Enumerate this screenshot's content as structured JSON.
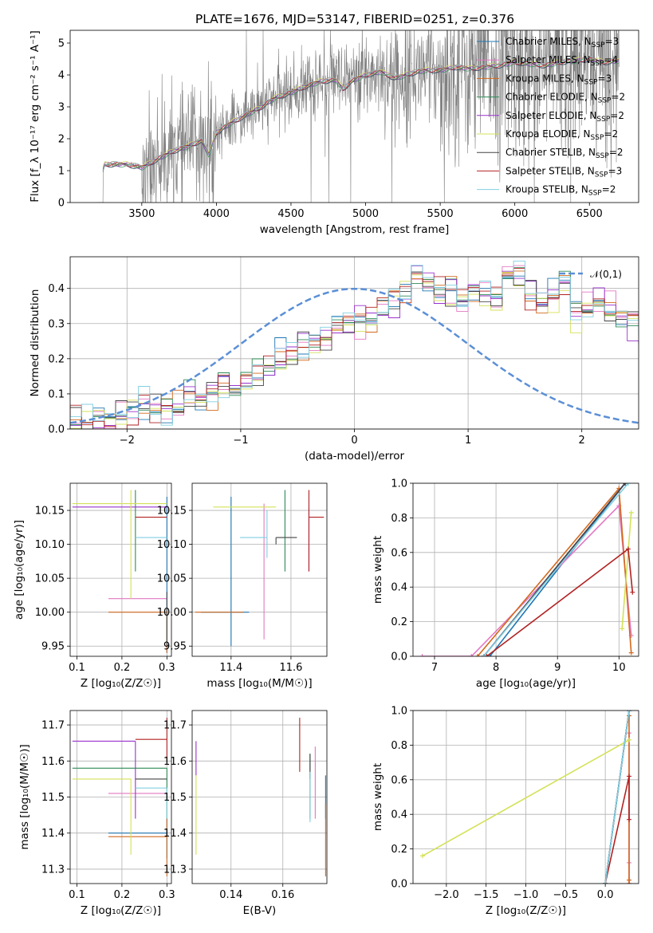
{
  "figure": {
    "title": "PLATE=1676, MJD=53147, FIBERID=0251, z=0.376"
  },
  "models": [
    {
      "name": "Chabrier MILES",
      "n": "3",
      "color": "#1f77b4"
    },
    {
      "name": "Salpeter MILES",
      "n": "4",
      "color": "#e377c2"
    },
    {
      "name": "Kroupa MILES",
      "n": "3",
      "color": "#d2691e"
    },
    {
      "name": "Chabrier ELODIE",
      "n": "2",
      "color": "#2e8b57"
    },
    {
      "name": "Salpeter ELODIE",
      "n": "2",
      "color": "#9932cc"
    },
    {
      "name": "Kroupa ELODIE",
      "n": "2",
      "color": "#d4e157"
    },
    {
      "name": "Chabrier STELIB",
      "n": "2",
      "color": "#444444"
    },
    {
      "name": "Salpeter STELIB",
      "n": "3",
      "color": "#b22222"
    },
    {
      "name": "Kroupa STELIB",
      "n": "2",
      "color": "#80cfe0"
    }
  ],
  "chart_data": [
    {
      "id": "spectrum",
      "type": "line",
      "xlabel": "wavelength [Angstrom, rest frame]",
      "ylabel": "Flux [f_λ 10⁻¹⁷ erg cm⁻² s⁻¹ A⁻¹]",
      "xlim": [
        3020,
        6830
      ],
      "ylim": [
        0,
        5.4
      ],
      "xticks": [
        3500,
        4000,
        4500,
        5000,
        5500,
        6000,
        6500
      ],
      "yticks": [
        0,
        1,
        2,
        3,
        4,
        5
      ],
      "legend": "top-right",
      "data_color": "#808080",
      "data_range": [
        3200,
        6700
      ],
      "model_knots": {
        "x": [
          3200,
          3250,
          3300,
          3400,
          3500,
          3600,
          3700,
          3800,
          3900,
          3950,
          4000,
          4100,
          4200,
          4300,
          4400,
          4500,
          4600,
          4700,
          4800,
          4850,
          4900,
          5000,
          5100,
          5200,
          5300,
          5400,
          5500,
          5600,
          5700,
          5800,
          5900,
          6000,
          6100,
          6200,
          6300,
          6400,
          6500,
          6600,
          6700
        ],
        "y": [
          0.3,
          1.2,
          1.2,
          1.2,
          1.1,
          1.35,
          1.6,
          1.75,
          1.95,
          1.5,
          2.2,
          2.5,
          2.75,
          3.0,
          3.3,
          3.45,
          3.65,
          3.8,
          3.85,
          3.55,
          3.8,
          4.0,
          4.1,
          3.9,
          4.05,
          4.15,
          4.15,
          4.25,
          4.2,
          4.25,
          4.3,
          4.4,
          4.35,
          4.3,
          4.4,
          4.45,
          4.5,
          4.4,
          4.45
        ]
      }
    },
    {
      "id": "residuals",
      "type": "histogram",
      "xlabel": "(data-model)/error",
      "ylabel": "Normed distribution",
      "xlim": [
        -2.5,
        2.5
      ],
      "ylim": [
        0,
        0.49
      ],
      "xticks": [
        -2,
        -1,
        0,
        1,
        2
      ],
      "yticks": [
        0.0,
        0.1,
        0.2,
        0.3,
        0.4
      ],
      "grid": true,
      "legend": "top-right",
      "reference": {
        "name": "𝒩(0,1)",
        "mean": 0,
        "sd": 1,
        "color": "#5b8fd6"
      },
      "bin_width": 0.1,
      "base_heights": [
        0.02,
        0.025,
        0.03,
        0.03,
        0.04,
        0.045,
        0.06,
        0.065,
        0.05,
        0.06,
        0.075,
        0.09,
        0.11,
        0.13,
        0.12,
        0.14,
        0.16,
        0.18,
        0.2,
        0.2,
        0.23,
        0.24,
        0.26,
        0.29,
        0.3,
        0.31,
        0.3,
        0.35,
        0.37,
        0.39,
        0.43,
        0.41,
        0.39,
        0.37,
        0.36,
        0.39,
        0.38,
        0.37,
        0.43,
        0.44,
        0.39,
        0.36,
        0.39,
        0.42,
        0.34,
        0.33,
        0.36,
        0.34,
        0.32,
        0.3,
        0.27,
        0.25,
        0.24,
        0.23,
        0.22,
        0.2,
        0.19,
        0.18,
        0.15,
        0.14,
        0.16,
        0.13,
        0.11,
        0.16,
        0.1,
        0.09,
        0.08,
        0.07,
        0.06,
        0.06,
        0.05,
        0.05,
        0.04,
        0.04,
        0.03,
        0.03,
        0.035,
        0.03,
        0.03,
        0.03
      ]
    },
    {
      "id": "age-vs-Z",
      "type": "errorbar",
      "xlabel": "Z [log₁₀(Z/Z☉)]",
      "ylabel": "age  [log₁₀(age/yr)]",
      "xlim": [
        0.085,
        0.31
      ],
      "ylim": [
        9.935,
        10.19
      ],
      "xticks": [
        0.1,
        0.2,
        0.3
      ],
      "yticks": [
        9.95,
        10.0,
        10.05,
        10.1,
        10.15
      ],
      "grid": true,
      "points": [
        {
          "m": 0,
          "x": 0.3,
          "y": 9.95,
          "xerr": [
            0.3,
            0.3
          ],
          "yerr": [
            9.94,
            10.17
          ]
        },
        {
          "m": 1,
          "x": 0.22,
          "y": 10.02,
          "xerr": [
            0.17,
            0.3
          ],
          "yerr": [
            10.02,
            10.02
          ]
        },
        {
          "m": 2,
          "x": 0.3,
          "y": 10.0,
          "xerr": [
            0.17,
            0.3
          ],
          "yerr": [
            9.94,
            10.0
          ]
        },
        {
          "m": 3,
          "x": 0.23,
          "y": 10.13,
          "xerr": [
            0.23,
            0.23
          ],
          "yerr": [
            10.06,
            10.18
          ]
        },
        {
          "m": 4,
          "x": 0.09,
          "y": 10.155,
          "xerr": [
            0.09,
            0.3
          ],
          "yerr": [
            10.155,
            10.155
          ]
        },
        {
          "m": 5,
          "x": 0.22,
          "y": 10.16,
          "xerr": [
            0.09,
            0.3
          ],
          "yerr": [
            10.02,
            10.18
          ]
        },
        {
          "m": 6,
          "x": 0.3,
          "y": 10.03,
          "xerr": [
            0.3,
            0.3
          ],
          "yerr": [
            9.95,
            10.03
          ]
        },
        {
          "m": 7,
          "x": 0.23,
          "y": 10.14,
          "xerr": [
            0.23,
            0.3
          ],
          "yerr": [
            10.14,
            10.14
          ]
        },
        {
          "m": 8,
          "x": 0.26,
          "y": 10.11,
          "xerr": [
            0.23,
            0.3
          ],
          "yerr": [
            10.11,
            10.11
          ]
        }
      ]
    },
    {
      "id": "age-vs-mass",
      "type": "errorbar",
      "xlabel": "mass [log₁₀(M/M☉)]",
      "ylabel": "",
      "xlim": [
        11.27,
        11.72
      ],
      "ylim": [
        9.935,
        10.19
      ],
      "xticks": [
        11.4,
        11.6
      ],
      "yticks": [
        9.95,
        10.0,
        10.05,
        10.1,
        10.15
      ],
      "grid": true,
      "points": [
        {
          "m": 0,
          "x": 11.4,
          "y": 10.0,
          "xerr": [
            11.3,
            11.46
          ],
          "yerr": [
            9.95,
            10.17
          ]
        },
        {
          "m": 1,
          "x": 11.51,
          "y": 10.02,
          "xerr": [
            11.51,
            11.51
          ],
          "yerr": [
            9.96,
            10.16
          ]
        },
        {
          "m": 2,
          "x": 11.39,
          "y": 10.0,
          "xerr": [
            11.28,
            11.44
          ],
          "yerr": [
            10.0,
            10.0
          ]
        },
        {
          "m": 3,
          "x": 11.58,
          "y": 10.13,
          "xerr": [
            11.58,
            11.58
          ],
          "yerr": [
            10.06,
            10.18
          ]
        },
        {
          "m": 4,
          "x": 11.66,
          "y": 10.155,
          "xerr": [
            11.66,
            11.66
          ],
          "yerr": [
            10.06,
            10.155
          ]
        },
        {
          "m": 5,
          "x": 11.55,
          "y": 10.155,
          "xerr": [
            11.34,
            11.55
          ],
          "yerr": [
            10.155,
            10.155
          ]
        },
        {
          "m": 6,
          "x": 11.55,
          "y": 10.11,
          "xerr": [
            11.55,
            11.62
          ],
          "yerr": [
            10.1,
            10.11
          ]
        },
        {
          "m": 7,
          "x": 11.66,
          "y": 10.14,
          "xerr": [
            11.66,
            11.71
          ],
          "yerr": [
            10.06,
            10.18
          ]
        },
        {
          "m": 8,
          "x": 11.52,
          "y": 10.11,
          "xerr": [
            11.43,
            11.52
          ],
          "yerr": [
            10.08,
            10.15
          ]
        }
      ]
    },
    {
      "id": "mass-weight-vs-age",
      "type": "line",
      "xlabel": "age  [log₁₀(age/yr)]",
      "ylabel": "mass weight",
      "xlim": [
        6.65,
        10.32
      ],
      "ylim": [
        0,
        1.0
      ],
      "xticks": [
        7,
        8,
        9,
        10
      ],
      "yticks": [
        0.0,
        0.2,
        0.4,
        0.6,
        0.8,
        1.0
      ],
      "grid": true,
      "series": [
        {
          "m": 0,
          "x": [
            7.9,
            10.1
          ],
          "y": [
            0.0,
            1.0
          ]
        },
        {
          "m": 1,
          "x": [
            6.8,
            7.6,
            10.0,
            10.2
          ],
          "y": [
            0.0,
            0.0,
            0.87,
            0.12
          ]
        },
        {
          "m": 2,
          "x": [
            7.7,
            10.0,
            10.2
          ],
          "y": [
            0.0,
            0.97,
            0.02
          ]
        },
        {
          "m": 3,
          "x": [
            7.8,
            10.1
          ],
          "y": [
            0.0,
            1.0
          ]
        },
        {
          "m": 4,
          "x": [
            7.8,
            10.1
          ],
          "y": [
            0.0,
            1.0
          ]
        },
        {
          "m": 5,
          "x": [
            10.05,
            10.2
          ],
          "y": [
            0.16,
            0.83
          ]
        },
        {
          "m": 6,
          "x": [
            7.8,
            10.1
          ],
          "y": [
            0.0,
            1.0
          ]
        },
        {
          "m": 7,
          "x": [
            7.85,
            10.15,
            10.22
          ],
          "y": [
            0.0,
            0.62,
            0.37
          ]
        },
        {
          "m": 8,
          "x": [
            7.8,
            10.15
          ],
          "y": [
            0.0,
            1.0
          ]
        }
      ]
    },
    {
      "id": "mass-vs-Z",
      "type": "errorbar",
      "xlabel": "Z [log₁₀(Z/Z☉)]",
      "ylabel": "mass [log₁₀(M/M☉)]",
      "xlim": [
        0.085,
        0.31
      ],
      "ylim": [
        11.26,
        11.74
      ],
      "xticks": [
        0.1,
        0.2,
        0.3
      ],
      "yticks": [
        11.3,
        11.4,
        11.5,
        11.6,
        11.7
      ],
      "grid": true,
      "points": [
        {
          "m": 0,
          "x": 0.3,
          "y": 11.4,
          "xerr": [
            0.17,
            0.3
          ],
          "yerr": [
            11.33,
            11.44
          ]
        },
        {
          "m": 1,
          "x": 0.3,
          "y": 11.51,
          "xerr": [
            0.17,
            0.3
          ],
          "yerr": [
            11.51,
            11.51
          ]
        },
        {
          "m": 2,
          "x": 0.3,
          "y": 11.39,
          "xerr": [
            0.17,
            0.3
          ],
          "yerr": [
            11.28,
            11.44
          ]
        },
        {
          "m": 3,
          "x": 0.3,
          "y": 11.58,
          "xerr": [
            0.09,
            0.3
          ],
          "yerr": [
            11.44,
            11.58
          ]
        },
        {
          "m": 4,
          "x": 0.23,
          "y": 11.655,
          "xerr": [
            0.09,
            0.23
          ],
          "yerr": [
            11.44,
            11.655
          ]
        },
        {
          "m": 5,
          "x": 0.22,
          "y": 11.55,
          "xerr": [
            0.09,
            0.22
          ],
          "yerr": [
            11.34,
            11.55
          ]
        },
        {
          "m": 6,
          "x": 0.28,
          "y": 11.55,
          "xerr": [
            0.23,
            0.3
          ],
          "yerr": [
            11.55,
            11.55
          ]
        },
        {
          "m": 7,
          "x": 0.3,
          "y": 11.66,
          "xerr": [
            0.23,
            0.3
          ],
          "yerr": [
            11.6,
            11.72
          ]
        },
        {
          "m": 8,
          "x": 0.3,
          "y": 11.525,
          "xerr": [
            0.23,
            0.3
          ],
          "yerr": [
            11.44,
            11.525
          ]
        }
      ]
    },
    {
      "id": "mass-vs-EBV",
      "type": "errorbar",
      "xlabel": "E(B-V)",
      "ylabel": "",
      "xlim": [
        0.125,
        0.177
      ],
      "ylim": [
        11.26,
        11.74
      ],
      "xticks": [
        0.14,
        0.16
      ],
      "yticks": [
        11.3,
        11.4,
        11.5,
        11.6,
        11.7
      ],
      "grid": true,
      "points": [
        {
          "m": 0,
          "x": 0.1765,
          "y": 11.5,
          "xerr": [
            0.1765,
            0.1765
          ],
          "yerr": [
            11.44,
            11.56
          ]
        },
        {
          "m": 1,
          "x": 0.1725,
          "y": 11.55,
          "xerr": [
            0.1725,
            0.1725
          ],
          "yerr": [
            11.44,
            11.64
          ]
        },
        {
          "m": 2,
          "x": 0.1765,
          "y": 11.38,
          "xerr": [
            0.1765,
            0.1765
          ],
          "yerr": [
            11.28,
            11.48
          ]
        },
        {
          "m": 3,
          "x": 0.1705,
          "y": 11.55,
          "xerr": [
            0.1705,
            0.1705
          ],
          "yerr": [
            11.44,
            11.62
          ]
        },
        {
          "m": 4,
          "x": 0.1265,
          "y": 11.6,
          "xerr": [
            0.1265,
            0.1265
          ],
          "yerr": [
            11.56,
            11.655
          ]
        },
        {
          "m": 5,
          "x": 0.1265,
          "y": 11.45,
          "xerr": [
            0.1265,
            0.1265
          ],
          "yerr": [
            11.34,
            11.56
          ]
        },
        {
          "m": 6,
          "x": 0.1705,
          "y": 11.6,
          "xerr": [
            0.1705,
            0.1705
          ],
          "yerr": [
            11.55,
            11.62
          ]
        },
        {
          "m": 7,
          "x": 0.1665,
          "y": 11.66,
          "xerr": [
            0.1665,
            0.1665
          ],
          "yerr": [
            11.57,
            11.72
          ]
        },
        {
          "m": 8,
          "x": 0.1705,
          "y": 11.5,
          "xerr": [
            0.1705,
            0.1705
          ],
          "yerr": [
            11.43,
            11.57
          ]
        }
      ]
    },
    {
      "id": "mass-weight-vs-Z",
      "type": "line",
      "xlabel": "Z [log₁₀(Z/Z☉)]",
      "ylabel": "mass weight",
      "xlim": [
        -2.42,
        0.42
      ],
      "ylim": [
        0,
        1.0
      ],
      "xticks": [
        -2.0,
        -1.5,
        -1.0,
        -0.5,
        0.0,
        0.5
      ],
      "yticks": [
        0.0,
        0.2,
        0.4,
        0.6,
        0.8,
        1.0
      ],
      "grid": true,
      "series": [
        {
          "m": 0,
          "x": [
            0.0,
            0.3
          ],
          "y": [
            0.0,
            1.0
          ]
        },
        {
          "m": 1,
          "x": [
            0.3,
            0.3,
            0.3
          ],
          "y": [
            0.12,
            0.87,
            0.0
          ]
        },
        {
          "m": 2,
          "x": [
            0.3,
            0.3,
            0.3
          ],
          "y": [
            0.02,
            0.97,
            0.0
          ]
        },
        {
          "m": 3,
          "x": [
            0.0,
            0.3
          ],
          "y": [
            0.0,
            1.0
          ]
        },
        {
          "m": 4,
          "x": [
            0.0,
            0.3
          ],
          "y": [
            0.0,
            1.0
          ]
        },
        {
          "m": 5,
          "x": [
            -2.3,
            0.3
          ],
          "y": [
            0.16,
            0.83
          ]
        },
        {
          "m": 6,
          "x": [
            0.0,
            0.3
          ],
          "y": [
            0.0,
            1.0
          ]
        },
        {
          "m": 7,
          "x": [
            0.0,
            0.3,
            0.3
          ],
          "y": [
            0.0,
            0.62,
            0.37
          ]
        },
        {
          "m": 8,
          "x": [
            0.0,
            0.3
          ],
          "y": [
            0.0,
            1.0
          ]
        }
      ]
    }
  ]
}
